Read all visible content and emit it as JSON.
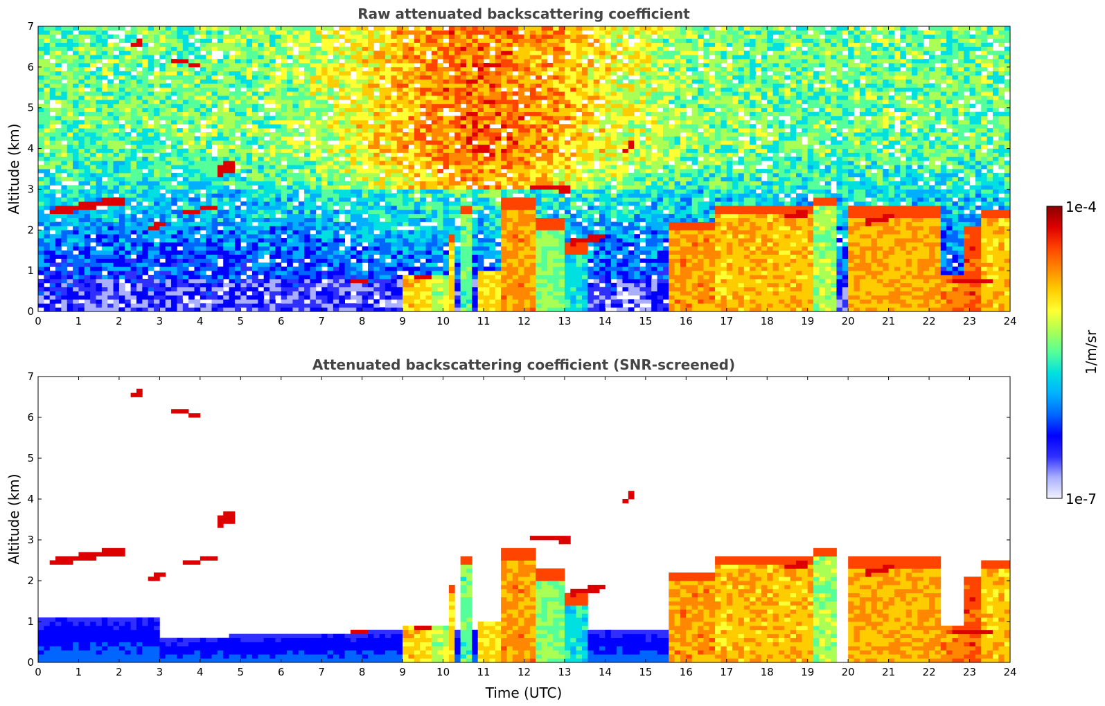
{
  "colors": {
    "text": "#000000",
    "title": "#444444",
    "colormap": [
      "#f2f2ff",
      "#aab0ff",
      "#2f2fff",
      "#0000ff",
      "#0066ff",
      "#00b0ff",
      "#00e0e0",
      "#55ff99",
      "#aaff55",
      "#ffff33",
      "#ffcc00",
      "#ff8800",
      "#ff4400",
      "#dd0000",
      "#8b0000"
    ]
  },
  "colorbar": {
    "max_label": "1e-4",
    "min_label": "1e-7",
    "unit_label": "1/m/sr",
    "scale": "log"
  },
  "chart_data": [
    {
      "type": "heatmap",
      "title": "Raw attenuated backscattering coefficient",
      "xlabel": "",
      "ylabel": "Altitude (km)",
      "xlim": [
        0,
        24
      ],
      "ylim": [
        0,
        7
      ],
      "xticks": [
        "0",
        "1",
        "2",
        "3",
        "4",
        "5",
        "6",
        "7",
        "8",
        "9",
        "10",
        "11",
        "12",
        "13",
        "14",
        "15",
        "16",
        "17",
        "18",
        "19",
        "20",
        "21",
        "22",
        "23",
        "24"
      ],
      "yticks": [
        "0",
        "1",
        "2",
        "3",
        "4",
        "5",
        "6",
        "7"
      ],
      "screened": false
    },
    {
      "type": "heatmap",
      "title": "Attenuated backscattering coefficient (SNR-screened)",
      "xlabel": "Time (UTC)",
      "ylabel": "Altitude (km)",
      "xlim": [
        0,
        24
      ],
      "ylim": [
        0,
        7
      ],
      "xticks": [
        "0",
        "1",
        "2",
        "3",
        "4",
        "5",
        "6",
        "7",
        "8",
        "9",
        "10",
        "11",
        "12",
        "13",
        "14",
        "15",
        "16",
        "17",
        "18",
        "19",
        "20",
        "21",
        "22",
        "23",
        "24"
      ],
      "yticks": [
        "0",
        "1",
        "2",
        "3",
        "4",
        "5",
        "6",
        "7"
      ],
      "screened": true
    }
  ]
}
